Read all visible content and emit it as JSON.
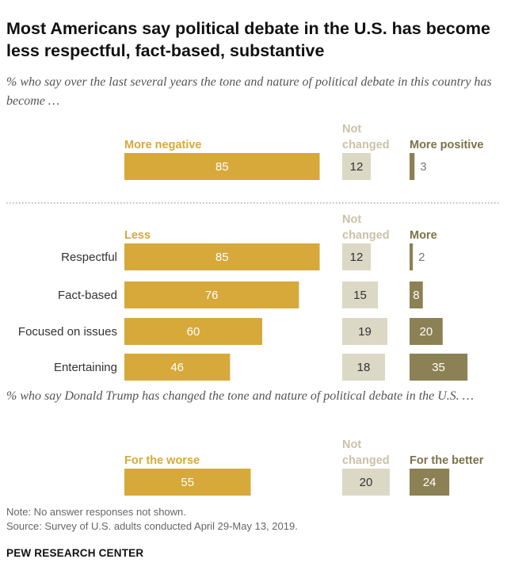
{
  "title": "Most Americans say political debate in the U.S. has become less respectful, fact-based, substantive",
  "subtitle_1": "% who say over the last several years the tone and nature of political debate in this country has become …",
  "subtitle_2": "% who say Donald Trump has changed the tone and nature of political debate in the U.S. …",
  "note": "Note: No answer responses not shown.",
  "source": "Source: Survey of U.S. adults conducted April 29-May 13, 2019.",
  "brand": "PEW RESEARCH CENTER",
  "colors": {
    "negative": "#d6a93a",
    "unchanged": "#dcd8c6",
    "positive": "#8c8154",
    "not_changed_label": "#c9c2a8",
    "positive_label": "#7c7248"
  },
  "chart_data": [
    {
      "type": "bar",
      "headers": {
        "negative": "More negative",
        "unchanged": "Not changed",
        "positive": "More positive"
      },
      "categories": [
        ""
      ],
      "series": [
        {
          "name": "More negative",
          "values": [
            85
          ]
        },
        {
          "name": "Not changed",
          "values": [
            12
          ]
        },
        {
          "name": "More positive",
          "values": [
            3
          ]
        }
      ]
    },
    {
      "type": "bar",
      "headers": {
        "negative": "Less",
        "unchanged": "Not changed",
        "positive": "More"
      },
      "categories": [
        "Respectful",
        "Fact-based",
        "Focused on issues",
        "Entertaining"
      ],
      "series": [
        {
          "name": "Less",
          "values": [
            85,
            76,
            60,
            46
          ]
        },
        {
          "name": "Not changed",
          "values": [
            12,
            15,
            19,
            18
          ]
        },
        {
          "name": "More",
          "values": [
            2,
            8,
            20,
            35
          ]
        }
      ]
    },
    {
      "type": "bar",
      "headers": {
        "negative": "For the worse",
        "unchanged": "Not changed",
        "positive": "For the better"
      },
      "categories": [
        ""
      ],
      "series": [
        {
          "name": "For the worse",
          "values": [
            55
          ]
        },
        {
          "name": "Not changed",
          "values": [
            20
          ]
        },
        {
          "name": "For the better",
          "values": [
            24
          ]
        }
      ]
    }
  ]
}
